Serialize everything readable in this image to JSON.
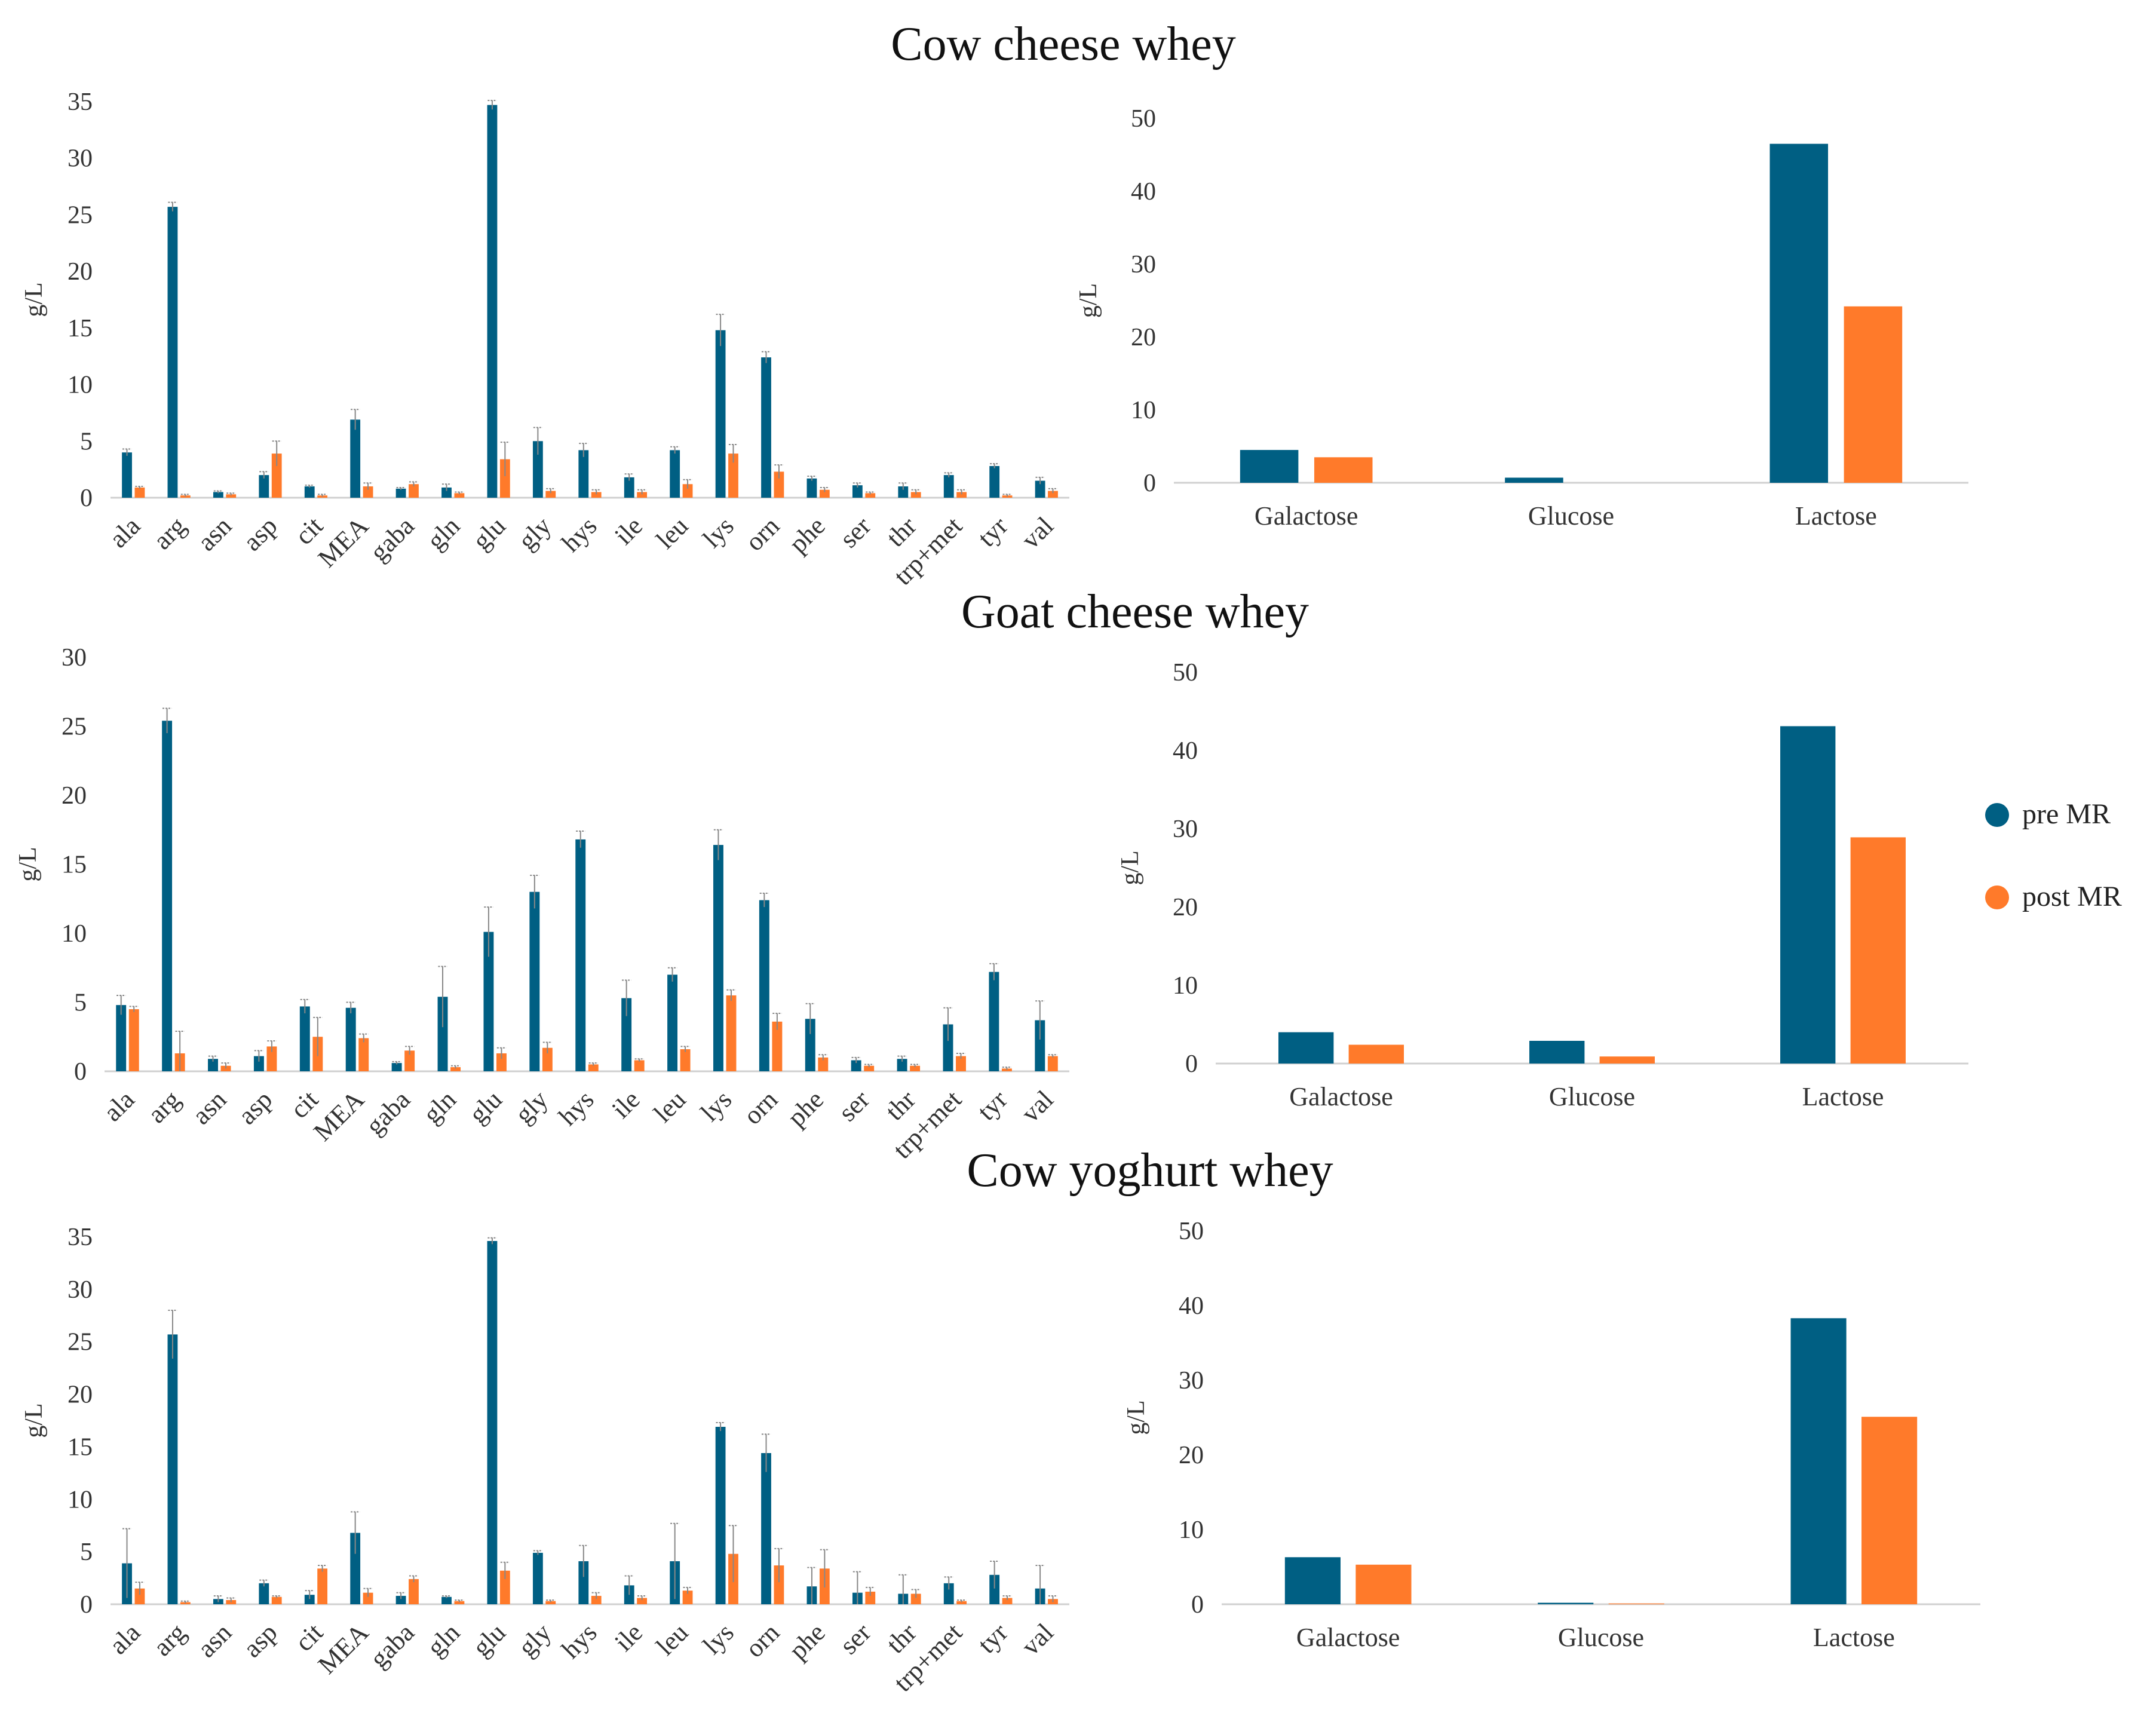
{
  "colors": {
    "pre": "#005f83",
    "post": "#ff7a2a",
    "axis": "#d0d0d0",
    "error": "#888888"
  },
  "legend": {
    "pre_label": "pre MR",
    "post_label": "post MR"
  },
  "chart_data": [
    {
      "id": "cow-cheese",
      "title": "Cow cheese whey",
      "amino": {
        "type": "bar",
        "ylabel": "g/L",
        "ylim": [
          0,
          35
        ],
        "yticks": [
          0,
          5,
          10,
          15,
          20,
          25,
          30,
          35
        ],
        "categories": [
          "ala",
          "arg",
          "asn",
          "asp",
          "cit",
          "MEA",
          "gaba",
          "gln",
          "glu",
          "gly",
          "hys",
          "ile",
          "leu",
          "lys",
          "orn",
          "phe",
          "ser",
          "thr",
          "trp+met",
          "tyr",
          "val"
        ],
        "series": [
          {
            "name": "pre MR",
            "values": [
              4.0,
              25.7,
              0.5,
              2.0,
              1.0,
              6.9,
              0.8,
              0.9,
              34.7,
              5.0,
              4.2,
              1.8,
              4.2,
              14.8,
              12.4,
              1.7,
              1.1,
              1.0,
              2.0,
              2.8,
              1.5
            ],
            "errors": [
              0.3,
              0.4,
              0.1,
              0.3,
              0.1,
              0.9,
              0.1,
              0.3,
              0.4,
              1.2,
              0.6,
              0.3,
              0.3,
              1.4,
              0.5,
              0.2,
              0.2,
              0.3,
              0.2,
              0.2,
              0.3
            ]
          },
          {
            "name": "post MR",
            "values": [
              0.9,
              0.2,
              0.3,
              3.9,
              0.2,
              1.0,
              1.2,
              0.4,
              3.4,
              0.6,
              0.5,
              0.5,
              1.2,
              3.9,
              2.3,
              0.7,
              0.4,
              0.5,
              0.5,
              0.2,
              0.6
            ],
            "errors": [
              0.1,
              0.1,
              0.1,
              1.1,
              0.1,
              0.3,
              0.2,
              0.1,
              1.5,
              0.2,
              0.2,
              0.2,
              0.4,
              0.8,
              0.6,
              0.2,
              0.1,
              0.2,
              0.2,
              0.1,
              0.2
            ]
          }
        ]
      },
      "sugars": {
        "type": "bar",
        "ylabel": "g/L",
        "ylim": [
          0,
          50
        ],
        "yticks": [
          0,
          10,
          20,
          30,
          40,
          50
        ],
        "categories": [
          "Galactose",
          "Glucose",
          "Lactose"
        ],
        "series": [
          {
            "name": "pre MR",
            "values": [
              4.5,
              0.7,
              46.5
            ]
          },
          {
            "name": "post MR",
            "values": [
              3.5,
              0.0,
              24.2
            ]
          }
        ]
      }
    },
    {
      "id": "goat-cheese",
      "title": "Goat cheese whey",
      "amino": {
        "type": "bar",
        "ylabel": "g/L",
        "ylim": [
          0,
          30
        ],
        "yticks": [
          0,
          5,
          10,
          15,
          20,
          25,
          30
        ],
        "categories": [
          "ala",
          "arg",
          "asn",
          "asp",
          "cit",
          "MEA",
          "gaba",
          "gln",
          "glu",
          "gly",
          "hys",
          "ile",
          "leu",
          "lys",
          "orn",
          "phe",
          "ser",
          "thr",
          "trp+met",
          "tyr",
          "val"
        ],
        "series": [
          {
            "name": "pre MR",
            "values": [
              4.8,
              25.4,
              0.9,
              1.1,
              4.7,
              4.6,
              0.6,
              5.4,
              10.1,
              13.0,
              16.8,
              5.3,
              7.0,
              16.4,
              12.4,
              3.8,
              0.8,
              0.9,
              3.4,
              7.2,
              3.7
            ],
            "errors": [
              0.7,
              0.9,
              0.2,
              0.4,
              0.5,
              0.4,
              0.1,
              2.2,
              1.8,
              1.2,
              0.6,
              1.3,
              0.5,
              1.1,
              0.5,
              1.1,
              0.2,
              0.2,
              1.2,
              0.6,
              1.4
            ]
          },
          {
            "name": "post MR",
            "values": [
              4.5,
              1.3,
              0.4,
              1.8,
              2.5,
              2.4,
              1.5,
              0.3,
              1.3,
              1.7,
              0.5,
              0.8,
              1.6,
              5.5,
              3.6,
              1.0,
              0.4,
              0.4,
              1.1,
              0.2,
              1.1
            ],
            "errors": [
              0.2,
              1.6,
              0.2,
              0.4,
              1.4,
              0.3,
              0.3,
              0.1,
              0.4,
              0.4,
              0.1,
              0.1,
              0.2,
              0.4,
              0.6,
              0.2,
              0.1,
              0.1,
              0.2,
              0.1,
              0.1
            ]
          }
        ]
      },
      "sugars": {
        "type": "bar",
        "ylabel": "g/L",
        "ylim": [
          0,
          50
        ],
        "yticks": [
          0,
          10,
          20,
          30,
          40,
          50
        ],
        "categories": [
          "Galactose",
          "Glucose",
          "Lactose"
        ],
        "series": [
          {
            "name": "pre MR",
            "values": [
              4.0,
              2.9,
              43.1
            ]
          },
          {
            "name": "post MR",
            "values": [
              2.4,
              0.9,
              28.9
            ]
          }
        ]
      }
    },
    {
      "id": "cow-yoghurt",
      "title": "Cow yoghurt whey",
      "amino": {
        "type": "bar",
        "ylabel": "g/L",
        "ylim": [
          0,
          35
        ],
        "yticks": [
          0,
          5,
          10,
          15,
          20,
          25,
          30,
          35
        ],
        "categories": [
          "ala",
          "arg",
          "asn",
          "asp",
          "cit",
          "MEA",
          "gaba",
          "gln",
          "glu",
          "gly",
          "hys",
          "ile",
          "leu",
          "lys",
          "orn",
          "phe",
          "ser",
          "thr",
          "trp+met",
          "tyr",
          "val"
        ],
        "series": [
          {
            "name": "pre MR",
            "values": [
              3.9,
              25.7,
              0.5,
              2.0,
              0.9,
              6.8,
              0.8,
              0.7,
              34.6,
              4.9,
              4.1,
              1.8,
              4.1,
              16.9,
              14.4,
              1.7,
              1.1,
              1.0,
              2.0,
              2.8,
              1.5
            ],
            "errors": [
              3.3,
              2.3,
              0.3,
              0.3,
              0.4,
              2.0,
              0.3,
              0.1,
              0.3,
              0.2,
              1.5,
              0.9,
              3.6,
              0.4,
              1.8,
              1.8,
              2.0,
              1.8,
              0.6,
              1.3,
              2.2
            ]
          },
          {
            "name": "post MR",
            "values": [
              1.5,
              0.2,
              0.4,
              0.7,
              3.4,
              1.1,
              2.4,
              0.3,
              3.2,
              0.3,
              0.8,
              0.6,
              1.3,
              4.8,
              3.7,
              3.4,
              1.2,
              1.0,
              0.3,
              0.6,
              0.5
            ],
            "errors": [
              0.6,
              0.1,
              0.2,
              0.1,
              0.3,
              0.4,
              0.3,
              0.1,
              0.8,
              0.1,
              0.3,
              0.2,
              0.3,
              2.7,
              1.6,
              1.8,
              0.4,
              0.4,
              0.1,
              0.2,
              0.3
            ]
          }
        ]
      },
      "sugars": {
        "type": "bar",
        "ylabel": "g/L",
        "ylim": [
          0,
          50
        ],
        "yticks": [
          0,
          10,
          20,
          30,
          40,
          50
        ],
        "categories": [
          "Galactose",
          "Glucose",
          "Lactose"
        ],
        "series": [
          {
            "name": "pre MR",
            "values": [
              6.3,
              0.2,
              38.3
            ]
          },
          {
            "name": "post MR",
            "values": [
              5.3,
              0.1,
              25.1
            ]
          }
        ]
      }
    }
  ]
}
